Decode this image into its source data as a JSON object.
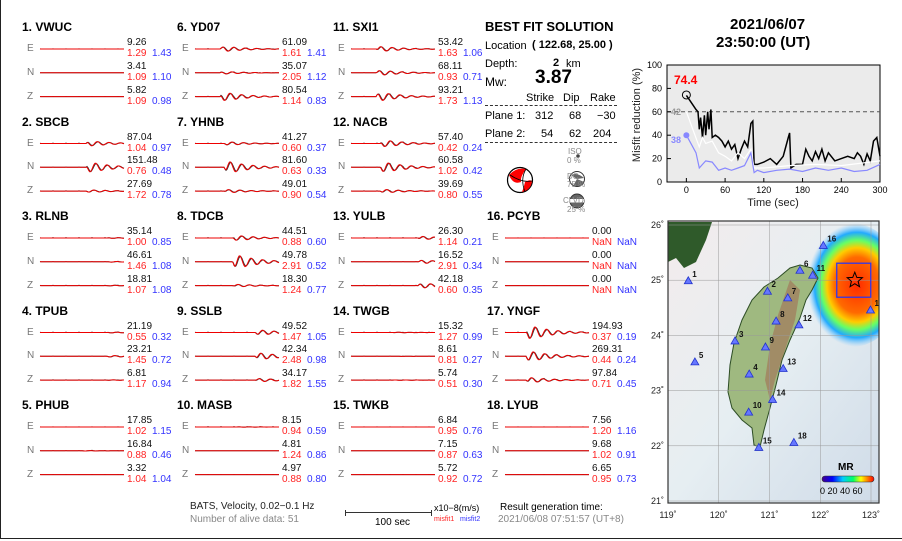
{
  "stations": [
    {
      "num": "1.",
      "name": "VWUC",
      "comps": [
        {
          "c": "E",
          "amp": "9.26",
          "m1": "1.29",
          "m2": "1.43"
        },
        {
          "c": "N",
          "amp": "3.41",
          "m1": "1.09",
          "m2": "1.10"
        },
        {
          "c": "Z",
          "amp": "5.82",
          "m1": "1.09",
          "m2": "0.98"
        }
      ]
    },
    {
      "num": "2.",
      "name": "SBCB",
      "comps": [
        {
          "c": "E",
          "amp": "87.04",
          "m1": "1.04",
          "m2": "0.97"
        },
        {
          "c": "N",
          "amp": "151.48",
          "m1": "0.76",
          "m2": "0.48"
        },
        {
          "c": "Z",
          "amp": "27.69",
          "m1": "1.72",
          "m2": "0.78"
        }
      ]
    },
    {
      "num": "3.",
      "name": "RLNB",
      "comps": [
        {
          "c": "E",
          "amp": "35.14",
          "m1": "1.00",
          "m2": "0.85"
        },
        {
          "c": "N",
          "amp": "46.61",
          "m1": "1.46",
          "m2": "1.08"
        },
        {
          "c": "Z",
          "amp": "18.81",
          "m1": "1.07",
          "m2": "1.08"
        }
      ]
    },
    {
      "num": "4.",
      "name": "TPUB",
      "comps": [
        {
          "c": "E",
          "amp": "21.19",
          "m1": "0.55",
          "m2": "0.32"
        },
        {
          "c": "N",
          "amp": "23.21",
          "m1": "1.45",
          "m2": "0.72"
        },
        {
          "c": "Z",
          "amp": "6.81",
          "m1": "1.17",
          "m2": "0.94"
        }
      ]
    },
    {
      "num": "5.",
      "name": "PHUB",
      "comps": [
        {
          "c": "E",
          "amp": "17.85",
          "m1": "1.02",
          "m2": "1.15"
        },
        {
          "c": "N",
          "amp": "16.84",
          "m1": "0.88",
          "m2": "0.46"
        },
        {
          "c": "Z",
          "amp": "3.32",
          "m1": "1.04",
          "m2": "1.04"
        }
      ]
    },
    {
      "num": "6.",
      "name": "YD07",
      "comps": [
        {
          "c": "E",
          "amp": "61.09",
          "m1": "1.61",
          "m2": "1.41"
        },
        {
          "c": "N",
          "amp": "35.07",
          "m1": "2.05",
          "m2": "1.12"
        },
        {
          "c": "Z",
          "amp": "80.54",
          "m1": "1.14",
          "m2": "0.83"
        }
      ]
    },
    {
      "num": "7.",
      "name": "YHNB",
      "comps": [
        {
          "c": "E",
          "amp": "41.27",
          "m1": "0.60",
          "m2": "0.37"
        },
        {
          "c": "N",
          "amp": "81.60",
          "m1": "0.63",
          "m2": "0.33"
        },
        {
          "c": "Z",
          "amp": "49.01",
          "m1": "0.90",
          "m2": "0.54"
        }
      ]
    },
    {
      "num": "8.",
      "name": "TDCB",
      "comps": [
        {
          "c": "E",
          "amp": "44.51",
          "m1": "0.88",
          "m2": "0.60"
        },
        {
          "c": "N",
          "amp": "49.78",
          "m1": "2.91",
          "m2": "0.52"
        },
        {
          "c": "Z",
          "amp": "18.30",
          "m1": "1.24",
          "m2": "0.77"
        }
      ]
    },
    {
      "num": "9.",
      "name": "SSLB",
      "comps": [
        {
          "c": "E",
          "amp": "49.52",
          "m1": "1.47",
          "m2": "1.05"
        },
        {
          "c": "N",
          "amp": "42.34",
          "m1": "2.48",
          "m2": "0.98"
        },
        {
          "c": "Z",
          "amp": "34.17",
          "m1": "1.82",
          "m2": "1.55"
        }
      ]
    },
    {
      "num": "10.",
      "name": "MASB",
      "comps": [
        {
          "c": "E",
          "amp": "8.15",
          "m1": "0.94",
          "m2": "0.59"
        },
        {
          "c": "N",
          "amp": "4.81",
          "m1": "1.24",
          "m2": "0.86"
        },
        {
          "c": "Z",
          "amp": "4.97",
          "m1": "0.88",
          "m2": "0.80"
        }
      ]
    },
    {
      "num": "11.",
      "name": "SXI1",
      "comps": [
        {
          "c": "E",
          "amp": "53.42",
          "m1": "1.63",
          "m2": "1.06"
        },
        {
          "c": "N",
          "amp": "68.11",
          "m1": "0.93",
          "m2": "0.71"
        },
        {
          "c": "Z",
          "amp": "93.21",
          "m1": "1.73",
          "m2": "1.13"
        }
      ]
    },
    {
      "num": "12.",
      "name": "NACB",
      "comps": [
        {
          "c": "E",
          "amp": "57.40",
          "m1": "0.42",
          "m2": "0.24"
        },
        {
          "c": "N",
          "amp": "60.58",
          "m1": "1.02",
          "m2": "0.42"
        },
        {
          "c": "Z",
          "amp": "39.69",
          "m1": "0.80",
          "m2": "0.55"
        }
      ]
    },
    {
      "num": "13.",
      "name": "YULB",
      "comps": [
        {
          "c": "E",
          "amp": "26.30",
          "m1": "1.14",
          "m2": "0.21"
        },
        {
          "c": "N",
          "amp": "16.52",
          "m1": "2.91",
          "m2": "0.34"
        },
        {
          "c": "Z",
          "amp": "42.18",
          "m1": "0.60",
          "m2": "0.35"
        }
      ]
    },
    {
      "num": "14.",
      "name": "TWGB",
      "comps": [
        {
          "c": "E",
          "amp": "15.32",
          "m1": "1.27",
          "m2": "0.99"
        },
        {
          "c": "N",
          "amp": "8.61",
          "m1": "0.81",
          "m2": "0.27"
        },
        {
          "c": "Z",
          "amp": "5.74",
          "m1": "0.51",
          "m2": "0.30"
        }
      ]
    },
    {
      "num": "15.",
      "name": "TWKB",
      "comps": [
        {
          "c": "E",
          "amp": "6.84",
          "m1": "0.95",
          "m2": "0.76"
        },
        {
          "c": "N",
          "amp": "7.15",
          "m1": "0.87",
          "m2": "0.63"
        },
        {
          "c": "Z",
          "amp": "5.72",
          "m1": "0.92",
          "m2": "0.72"
        }
      ]
    },
    {
      "num": "16.",
      "name": "PCYB",
      "comps": [
        {
          "c": "E",
          "amp": "0.00",
          "m1": "NaN",
          "m2": "NaN"
        },
        {
          "c": "N",
          "amp": "0.00",
          "m1": "NaN",
          "m2": "NaN"
        },
        {
          "c": "Z",
          "amp": "0.00",
          "m1": "NaN",
          "m2": "NaN"
        }
      ]
    },
    {
      "num": "17.",
      "name": "YNGF",
      "comps": [
        {
          "c": "E",
          "amp": "194.93",
          "m1": "0.37",
          "m2": "0.19"
        },
        {
          "c": "N",
          "amp": "269.31",
          "m1": "0.44",
          "m2": "0.24"
        },
        {
          "c": "Z",
          "amp": "97.84",
          "m1": "0.71",
          "m2": "0.45"
        }
      ]
    },
    {
      "num": "18.",
      "name": "LYUB",
      "comps": [
        {
          "c": "E",
          "amp": "7.56",
          "m1": "1.20",
          "m2": "1.16"
        },
        {
          "c": "N",
          "amp": "9.68",
          "m1": "1.02",
          "m2": "0.91"
        },
        {
          "c": "Z",
          "amp": "6.65",
          "m1": "0.95",
          "m2": "0.73"
        }
      ]
    }
  ],
  "best_fit": {
    "title": "BEST FIT SOLUTION",
    "location_label": "Location",
    "location_value": "( 122.68,  25.00 )",
    "depth_label": "Depth:",
    "depth_value": "2",
    "depth_unit": "km",
    "mw_label": "Mw:",
    "mw_value": "3.87",
    "headers": [
      "Strike",
      "Dip",
      "Rake"
    ],
    "planes": [
      {
        "label": "Plane 1:",
        "strike": "312",
        "dip": "68",
        "rake": "−30"
      },
      {
        "label": "Plane 2:",
        "strike": "54",
        "dip": "62",
        "rake": "204"
      }
    ],
    "components": [
      {
        "name": "ISO",
        "pct": "0  %"
      },
      {
        "name": "DC",
        "pct": "75 %"
      },
      {
        "name": "CLVD",
        "pct": "25 %"
      }
    ]
  },
  "header": {
    "date": "2021/06/07",
    "time": "23:50:00  (UT)"
  },
  "footer": {
    "network": "BATS, Velocity, 0.02−0.1 Hz",
    "alive": "Number of alive data: 51",
    "scale_label": "100 sec",
    "unit": "x10−8(m/s)",
    "misfit1": "misfit1",
    "misfit2": "misfit2",
    "gen_label": "Result generation time:",
    "gen_time": "2021/06/08 07:51:57  (UT+8)"
  },
  "colors": {
    "observed": "#000000",
    "synthetic": "#ff0000",
    "misfit1": "#ff2222",
    "misfit2": "#3333ff"
  },
  "chart_data": {
    "type": "line",
    "xlabel": "Time (sec)",
    "ylabel": "Misfit reduction (%)",
    "xlim": [
      -30,
      300
    ],
    "ylim": [
      0,
      100
    ],
    "xticks": [
      0,
      60,
      120,
      180,
      240,
      300
    ],
    "yticks": [
      0,
      20,
      40,
      60,
      80,
      100
    ],
    "threshold": 60,
    "best_label": "74.4",
    "label_gray": "42",
    "label_blue": "38",
    "series": [
      {
        "color": "#000000",
        "x": [
          0,
          5,
          15,
          18,
          20,
          22,
          25,
          28,
          30,
          33,
          35,
          38,
          40,
          45,
          50,
          55,
          60,
          65,
          70,
          75,
          80,
          85,
          90,
          95,
          100,
          103,
          105,
          110,
          120,
          130,
          140,
          150,
          158,
          160,
          162,
          170,
          180,
          185,
          190,
          195,
          200,
          205,
          210,
          215,
          220,
          230,
          240,
          250,
          260,
          265,
          270,
          275,
          280,
          285,
          290,
          295,
          300
        ],
        "y": [
          74,
          70,
          62,
          60,
          45,
          55,
          38,
          57,
          40,
          60,
          45,
          62,
          38,
          40,
          38,
          35,
          30,
          35,
          28,
          32,
          20,
          28,
          35,
          30,
          50,
          52,
          15,
          15,
          17,
          20,
          15,
          22,
          38,
          42,
          12,
          15,
          15,
          28,
          22,
          18,
          26,
          20,
          28,
          18,
          25,
          18,
          20,
          22,
          20,
          25,
          22,
          15,
          24,
          18,
          35,
          38,
          22
        ]
      },
      {
        "color": "#ffffff",
        "x": [
          0,
          10,
          20,
          25,
          30,
          40,
          50,
          60,
          70,
          80,
          90,
          100,
          105,
          120,
          160,
          200,
          240,
          300
        ],
        "y": [
          60,
          45,
          30,
          38,
          33,
          35,
          25,
          22,
          18,
          25,
          20,
          28,
          12,
          12,
          14,
          15,
          14,
          18
        ]
      },
      {
        "color": "#8888ff",
        "x": [
          0,
          10,
          15,
          20,
          25,
          30,
          40,
          50,
          60,
          70,
          80,
          90,
          100,
          105,
          110,
          120,
          140,
          160,
          180,
          200,
          220,
          240,
          260,
          280,
          300
        ],
        "y": [
          40,
          30,
          25,
          12,
          15,
          18,
          17,
          10,
          12,
          10,
          12,
          14,
          25,
          8,
          10,
          8,
          10,
          11,
          9,
          12,
          10,
          12,
          9,
          10,
          15
        ]
      }
    ]
  },
  "map": {
    "lon_ticks": [
      "119˚",
      "120˚",
      "121˚",
      "122˚",
      "123˚"
    ],
    "lat_ticks": [
      "21˚",
      "22˚",
      "23˚",
      "24˚",
      "25˚",
      "26˚"
    ],
    "legend_title": "MR",
    "legend_ticks": "0 20 40 60",
    "epicenter": {
      "lon": 122.68,
      "lat": 25.0
    },
    "stations": [
      {
        "id": "1",
        "lon": 119.4,
        "lat": 24.99
      },
      {
        "id": "2",
        "lon": 120.96,
        "lat": 24.8
      },
      {
        "id": "3",
        "lon": 120.32,
        "lat": 23.9
      },
      {
        "id": "4",
        "lon": 120.6,
        "lat": 23.3
      },
      {
        "id": "5",
        "lon": 119.53,
        "lat": 23.52
      },
      {
        "id": "6",
        "lon": 121.6,
        "lat": 25.18
      },
      {
        "id": "7",
        "lon": 121.36,
        "lat": 24.68
      },
      {
        "id": "8",
        "lon": 121.13,
        "lat": 24.26
      },
      {
        "id": "9",
        "lon": 120.92,
        "lat": 23.79
      },
      {
        "id": "10",
        "lon": 120.59,
        "lat": 22.61
      },
      {
        "id": "11",
        "lon": 121.85,
        "lat": 25.09
      },
      {
        "id": "12",
        "lon": 121.58,
        "lat": 24.19
      },
      {
        "id": "13",
        "lon": 121.27,
        "lat": 23.4
      },
      {
        "id": "14",
        "lon": 121.06,
        "lat": 22.84
      },
      {
        "id": "15",
        "lon": 120.79,
        "lat": 21.97
      },
      {
        "id": "16",
        "lon": 122.06,
        "lat": 25.63
      },
      {
        "id": "17",
        "lon": 122.99,
        "lat": 24.46
      },
      {
        "id": "18",
        "lon": 121.48,
        "lat": 22.06
      }
    ]
  }
}
